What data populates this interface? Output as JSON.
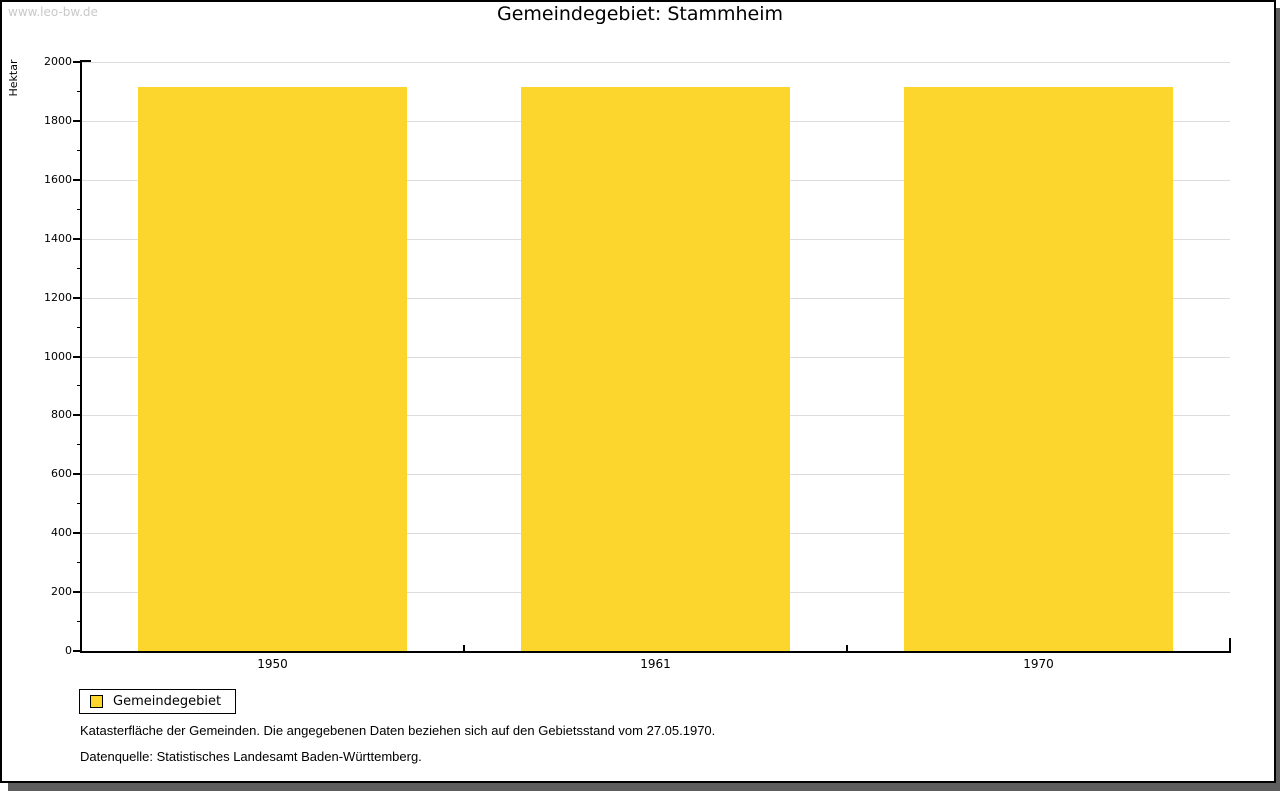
{
  "window": {
    "watermark": "www.leo-bw.de",
    "title": "Gemeindegebiet: Stammheim"
  },
  "chart_data": {
    "type": "bar",
    "title": "Gemeindegebiet: Stammheim",
    "categories": [
      "1950",
      "1961",
      "1970"
    ],
    "series": [
      {
        "name": "Gemeindegebiet",
        "values": [
          1914,
          1914,
          1914
        ]
      }
    ],
    "xlabel": "",
    "ylabel": "Hektar",
    "ylim": [
      0,
      2000
    ],
    "y_ticks": [
      0,
      200,
      400,
      600,
      800,
      1000,
      1200,
      1400,
      1600,
      1800,
      2000
    ],
    "minor_tick_interval": 100,
    "grid": "horizontal-major",
    "bar_color": "#fcd52d",
    "axis_color": "#000000",
    "gridline_color": "#dcdcdc",
    "legend_position": "bottom-left"
  },
  "legend": {
    "items": [
      {
        "label": "Gemeindegebiet",
        "color": "#fcd52d"
      }
    ]
  },
  "footer": {
    "line1": "Katasterfläche der Gemeinden. Die angegebenen Daten beziehen sich auf den Gebietsstand vom 27.05.1970.",
    "line2": "Datenquelle: Statistisches Landesamt Baden-Württemberg."
  }
}
